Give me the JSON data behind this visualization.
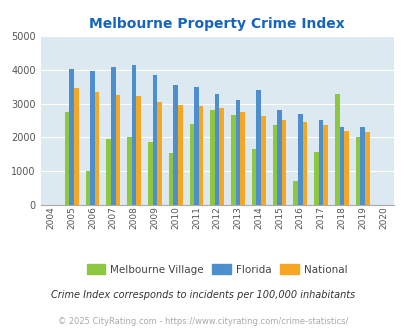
{
  "title": "Melbourne Property Crime Index",
  "years_labels": [
    "2004",
    "2005",
    "2006",
    "2007",
    "2008",
    "2009",
    "2010",
    "2011",
    "2012",
    "2013",
    "2014",
    "2015",
    "2016",
    "2017",
    "2018",
    "2019",
    "2020"
  ],
  "bar_years": [
    2005,
    2006,
    2007,
    2008,
    2009,
    2010,
    2011,
    2012,
    2013,
    2014,
    2015,
    2016,
    2017,
    2018,
    2019
  ],
  "melbourne_village": [
    2750,
    1000,
    1950,
    2000,
    1850,
    1520,
    2380,
    2820,
    2670,
    1660,
    2350,
    700,
    1560,
    3280,
    2000
  ],
  "florida": [
    4020,
    3980,
    4100,
    4150,
    3840,
    3560,
    3500,
    3290,
    3110,
    3390,
    2800,
    2680,
    2510,
    2300,
    2300
  ],
  "national": [
    3460,
    3340,
    3260,
    3230,
    3040,
    2960,
    2940,
    2880,
    2740,
    2620,
    2500,
    2460,
    2360,
    2200,
    2160
  ],
  "color_mv": "#8dc63f",
  "color_fl": "#4d8fcc",
  "color_nat": "#f5a623",
  "bg_color": "#dce9f0",
  "ylim": [
    0,
    5000
  ],
  "yticks": [
    0,
    1000,
    2000,
    3000,
    4000,
    5000
  ],
  "footnote": "Crime Index corresponds to incidents per 100,000 inhabitants",
  "copyright": "© 2025 CityRating.com - https://www.cityrating.com/crime-statistics/",
  "legend_labels": [
    "Melbourne Village",
    "Florida",
    "National"
  ],
  "title_color": "#1565c0",
  "footnote_color": "#333333",
  "copyright_color": "#aaaaaa"
}
